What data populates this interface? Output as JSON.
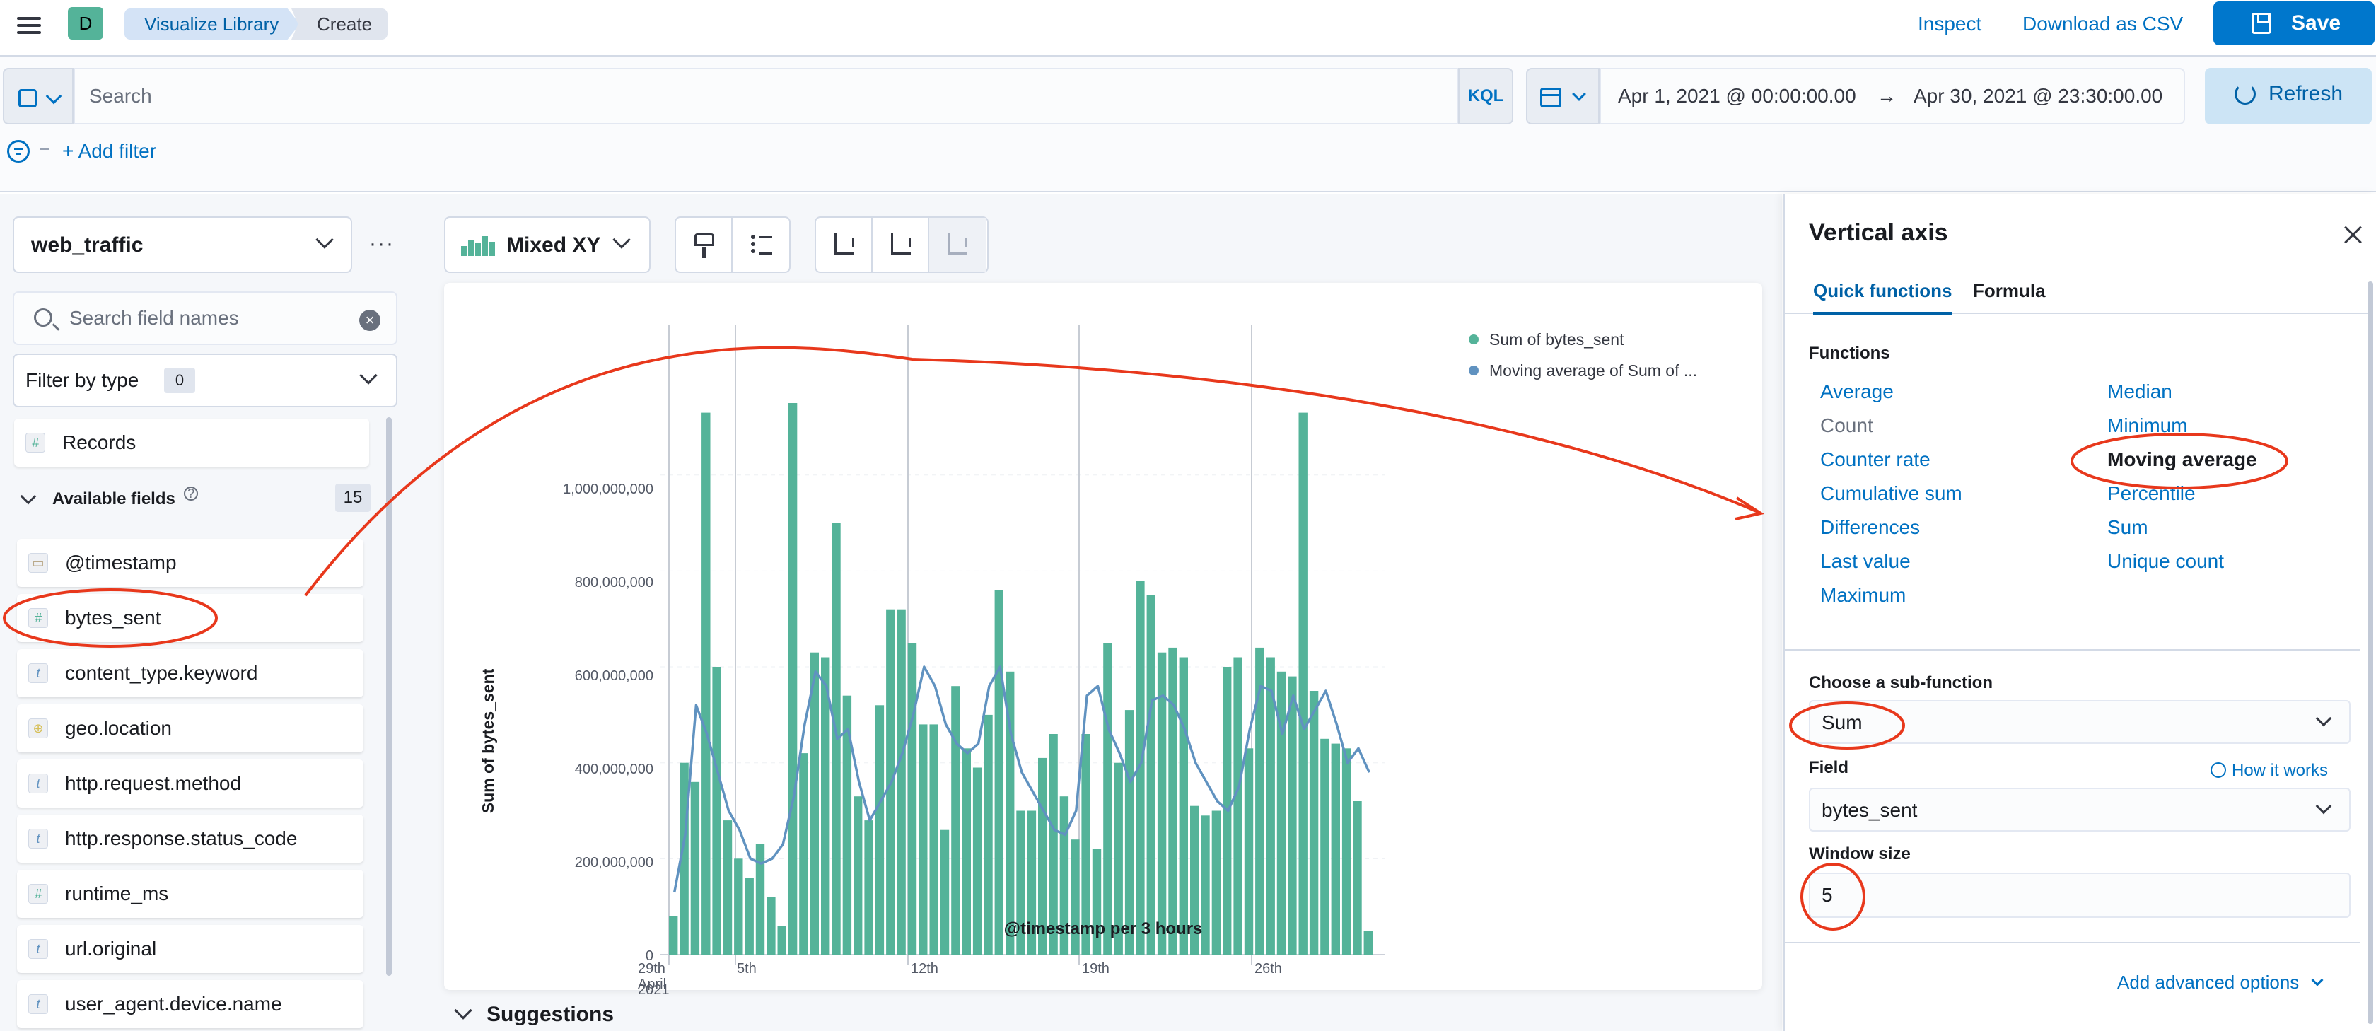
{
  "topnav": {
    "space_initial": "D",
    "breadcrumbs": [
      "Visualize Library",
      "Create"
    ],
    "inspect": "Inspect",
    "download_csv": "Download as CSV",
    "save": "Save"
  },
  "query": {
    "search_placeholder": "Search",
    "kql": "KQL",
    "date_start": "Apr 1, 2021 @ 00:00:00.00",
    "date_arrow": "→",
    "date_end": "Apr 30, 2021 @ 23:30:00.00",
    "refresh": "Refresh",
    "add_filter": "+ Add filter"
  },
  "sidebar": {
    "data_view": "web_traffic",
    "field_search_placeholder": "Search field names",
    "filter_by_type": "Filter by type",
    "filter_count": "0",
    "records": "Records",
    "available_fields": "Available fields",
    "available_count": "15",
    "fields": [
      {
        "name": "@timestamp",
        "type": "date"
      },
      {
        "name": "bytes_sent",
        "type": "number"
      },
      {
        "name": "content_type.keyword",
        "type": "string"
      },
      {
        "name": "geo.location",
        "type": "geo"
      },
      {
        "name": "http.request.method",
        "type": "string"
      },
      {
        "name": "http.response.status_code",
        "type": "string"
      },
      {
        "name": "runtime_ms",
        "type": "number"
      },
      {
        "name": "url.original",
        "type": "string"
      },
      {
        "name": "user_agent.device.name",
        "type": "string"
      }
    ]
  },
  "workspace": {
    "chart_type": "Mixed XY",
    "suggestions": "Suggestions"
  },
  "chart_data": {
    "type": "bar",
    "xlabel": "@timestamp per 3 hours",
    "ylabel": "Sum of bytes_sent",
    "ylim": [
      0,
      1150000000
    ],
    "y_ticks": [
      "0",
      "200,000,000",
      "400,000,000",
      "600,000,000",
      "800,000,000",
      "1,000,000,000"
    ],
    "x_ticks": [
      {
        "label": "29th",
        "sub": [
          "April",
          "2021"
        ]
      },
      {
        "label": "5th"
      },
      {
        "label": "12th"
      },
      {
        "label": "19th"
      },
      {
        "label": "26th"
      }
    ],
    "legend": [
      "Sum of bytes_sent",
      "Moving average of Sum of ..."
    ],
    "legend_position": "top-right",
    "series_colors": [
      "#54b399",
      "#6092c0"
    ],
    "grid": true,
    "series": [
      {
        "name": "Sum of bytes_sent",
        "values": [
          80000000,
          400000000,
          360000000,
          1130000000,
          600000000,
          280000000,
          200000000,
          160000000,
          230000000,
          120000000,
          60000000,
          1150000000,
          420000000,
          630000000,
          620000000,
          900000000,
          540000000,
          330000000,
          280000000,
          520000000,
          720000000,
          720000000,
          650000000,
          480000000,
          480000000,
          260000000,
          560000000,
          430000000,
          390000000,
          500000000,
          760000000,
          590000000,
          300000000,
          300000000,
          410000000,
          460000000,
          330000000,
          240000000,
          460000000,
          220000000,
          650000000,
          400000000,
          510000000,
          780000000,
          750000000,
          630000000,
          640000000,
          620000000,
          310000000,
          290000000,
          300000000,
          600000000,
          620000000,
          430000000,
          640000000,
          620000000,
          590000000,
          580000000,
          1130000000,
          550000000,
          450000000,
          440000000,
          430000000,
          320000000,
          50000000
        ]
      },
      {
        "name": "Moving average of Sum of bytes_sent",
        "values": [
          130000000,
          250000000,
          520000000,
          460000000,
          380000000,
          300000000,
          260000000,
          200000000,
          190000000,
          200000000,
          230000000,
          330000000,
          480000000,
          590000000,
          560000000,
          450000000,
          470000000,
          360000000,
          280000000,
          320000000,
          360000000,
          420000000,
          500000000,
          600000000,
          560000000,
          480000000,
          440000000,
          420000000,
          440000000,
          560000000,
          600000000,
          460000000,
          380000000,
          340000000,
          300000000,
          260000000,
          250000000,
          300000000,
          540000000,
          560000000,
          470000000,
          420000000,
          360000000,
          400000000,
          530000000,
          540000000,
          520000000,
          470000000,
          400000000,
          360000000,
          320000000,
          300000000,
          350000000,
          470000000,
          560000000,
          550000000,
          460000000,
          540000000,
          470000000,
          510000000,
          550000000,
          480000000,
          400000000,
          430000000,
          380000000
        ]
      }
    ]
  },
  "flyout": {
    "title": "Vertical axis",
    "tabs": [
      "Quick functions",
      "Formula"
    ],
    "functions_heading": "Functions",
    "functions_left": [
      "Average",
      "Count",
      "Counter rate",
      "Cumulative sum",
      "Differences",
      "Last value",
      "Maximum"
    ],
    "functions_right": [
      "Median",
      "Minimum",
      "Moving average",
      "Percentile",
      "Sum",
      "Unique count"
    ],
    "selected_function": "Moving average",
    "subfunction_label": "Choose a sub-function",
    "subfunction_value": "Sum",
    "field_label": "Field",
    "how_it_works": "How it works",
    "field_value": "bytes_sent",
    "window_label": "Window size",
    "window_value": "5",
    "advanced": "Add advanced options"
  },
  "annotation_color": "#e8381c"
}
